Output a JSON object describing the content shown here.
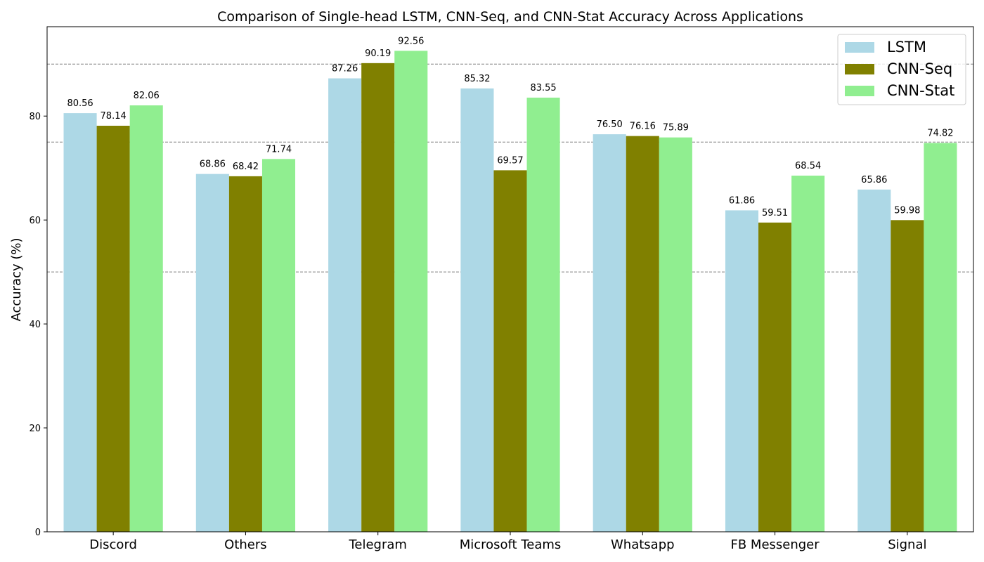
{
  "chart_data": {
    "type": "bar",
    "title": "Comparison of Single-head LSTM, CNN-Seq, and CNN-Stat Accuracy Across Applications",
    "xlabel": "",
    "ylabel": "Accuracy (%)",
    "ylim": [
      0,
      97.2
    ],
    "yticks": [
      0,
      20,
      40,
      60,
      80
    ],
    "ytick_labels": [
      "0",
      "20",
      "40",
      "60",
      "80"
    ],
    "reference_lines": [
      50,
      75,
      90
    ],
    "grid": false,
    "legend_position": "top-right",
    "categories": [
      "Discord",
      "Others",
      "Telegram",
      "Microsoft Teams",
      "Whatsapp",
      "FB Messenger",
      "Signal"
    ],
    "series": [
      {
        "name": "LSTM",
        "color": "#add8e6",
        "values": [
          80.56,
          68.86,
          87.26,
          85.32,
          76.5,
          61.86,
          65.86
        ],
        "labels": [
          "80.56",
          "68.86",
          "87.26",
          "85.32",
          "76.50",
          "61.86",
          "65.86"
        ]
      },
      {
        "name": "CNN-Seq",
        "color": "#808000",
        "values": [
          78.14,
          68.42,
          90.19,
          69.57,
          76.16,
          59.51,
          59.98
        ],
        "labels": [
          "78.14",
          "68.42",
          "90.19",
          "69.57",
          "76.16",
          "59.51",
          "59.98"
        ]
      },
      {
        "name": "CNN-Stat",
        "color": "#90ee90",
        "values": [
          82.06,
          71.74,
          92.56,
          83.55,
          75.89,
          68.54,
          74.82
        ],
        "labels": [
          "82.06",
          "71.74",
          "92.56",
          "83.55",
          "75.89",
          "68.54",
          "74.82"
        ]
      }
    ]
  }
}
